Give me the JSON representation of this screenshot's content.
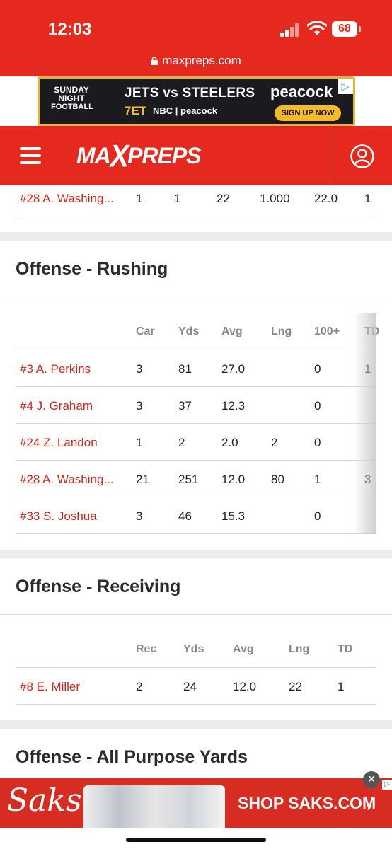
{
  "status_bar": {
    "time": "12:03",
    "battery": "68",
    "url": "maxpreps.com"
  },
  "ad_top": {
    "brand_line1": "SUNDAY NIGHT",
    "brand_line2": "FOOTBALL",
    "headline": "JETS vs STEELERS",
    "time": "7ET",
    "networks": "NBC | peacock",
    "logo": "peacock",
    "cta": "SIGN UP NOW"
  },
  "header": {
    "logo": "MAXPREPS"
  },
  "passing_tail": {
    "row": {
      "name": "#28 A. Washing...",
      "c1": "1",
      "c2": "1",
      "c3": "22",
      "c4": "1.000",
      "c5": "22.0",
      "c6": "1"
    }
  },
  "rushing": {
    "title": "Offense - Rushing",
    "columns": [
      "Car",
      "Yds",
      "Avg",
      "Lng",
      "100+",
      "TD"
    ],
    "rows": [
      {
        "name": "#3 A. Perkins",
        "car": "3",
        "yds": "81",
        "avg": "27.0",
        "lng": "",
        "h": "0",
        "td": "1"
      },
      {
        "name": "#4 J. Graham",
        "car": "3",
        "yds": "37",
        "avg": "12.3",
        "lng": "",
        "h": "0",
        "td": ""
      },
      {
        "name": "#24 Z. Landon",
        "car": "1",
        "yds": "2",
        "avg": "2.0",
        "lng": "2",
        "h": "0",
        "td": ""
      },
      {
        "name": "#28 A. Washing...",
        "car": "21",
        "yds": "251",
        "avg": "12.0",
        "lng": "80",
        "h": "1",
        "td": "3"
      },
      {
        "name": "#33 S. Joshua",
        "car": "3",
        "yds": "46",
        "avg": "15.3",
        "lng": "",
        "h": "0",
        "td": ""
      }
    ]
  },
  "receiving": {
    "title": "Offense - Receiving",
    "columns": [
      "Rec",
      "Yds",
      "Avg",
      "Lng",
      "TD"
    ],
    "rows": [
      {
        "name": "#8 E. Miller",
        "rec": "2",
        "yds": "24",
        "avg": "12.0",
        "lng": "22",
        "td": "1"
      }
    ]
  },
  "all_purpose": {
    "title": "Offense - All Purpose Yards"
  },
  "ad_bottom": {
    "brand": "Saks",
    "cta": "SHOP SAKS.COM"
  }
}
